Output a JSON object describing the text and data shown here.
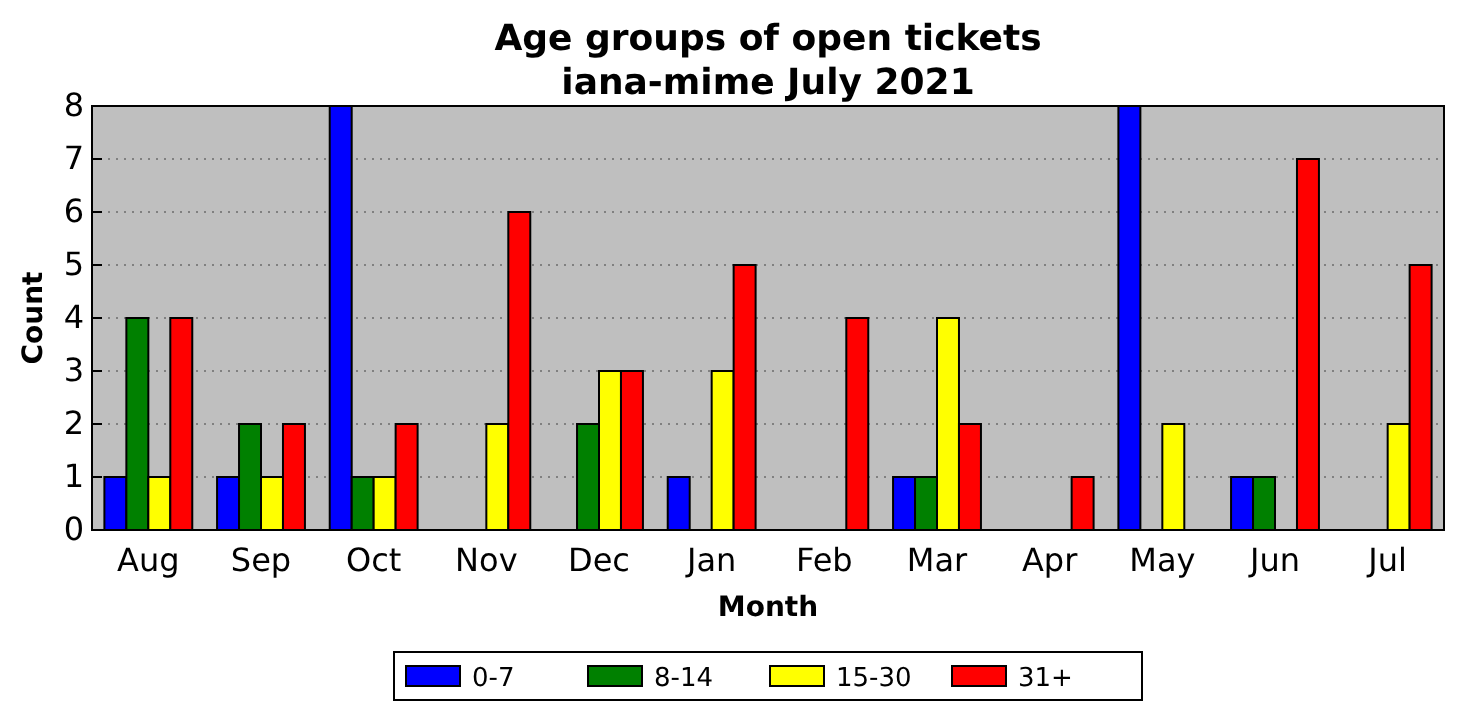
{
  "chart_data": {
    "type": "bar",
    "title": "Age groups of open tickets",
    "subtitle": "iana-mime July 2021",
    "xlabel": "Month",
    "ylabel": "Count",
    "categories": [
      "Aug",
      "Sep",
      "Oct",
      "Nov",
      "Dec",
      "Jan",
      "Feb",
      "Mar",
      "Apr",
      "May",
      "Jun",
      "Jul"
    ],
    "series": [
      {
        "name": "0-7",
        "color": "#0000ff",
        "values": [
          1,
          1,
          8,
          0,
          0,
          1,
          0,
          1,
          0,
          8,
          1,
          0
        ]
      },
      {
        "name": "8-14",
        "color": "#008000",
        "values": [
          4,
          2,
          1,
          0,
          2,
          0,
          0,
          1,
          0,
          0,
          1,
          0
        ]
      },
      {
        "name": "15-30",
        "color": "#ffff00",
        "values": [
          1,
          1,
          1,
          2,
          3,
          3,
          0,
          4,
          0,
          2,
          0,
          2
        ]
      },
      {
        "name": "31+",
        "color": "#ff0000",
        "values": [
          4,
          2,
          2,
          6,
          3,
          5,
          4,
          2,
          1,
          0,
          7,
          5
        ]
      }
    ],
    "ylim": [
      0,
      8
    ],
    "yticks": [
      0,
      1,
      2,
      3,
      4,
      5,
      6,
      7,
      8
    ],
    "grid": "y",
    "legend": "bottom"
  }
}
